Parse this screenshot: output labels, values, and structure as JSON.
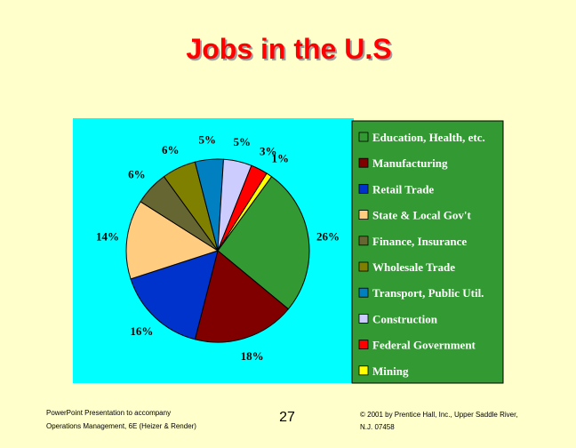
{
  "chart_data": {
    "type": "pie",
    "title": "Jobs in the U.S",
    "categories": [
      "Education, Health, etc.",
      "Manufacturing",
      "Retail Trade",
      "State & Local Gov't",
      "Finance, Insurance",
      "Wholesale Trade",
      "Transport, Public Util.",
      "Construction",
      "Federal Government",
      "Mining"
    ],
    "values": [
      26,
      18,
      16,
      14,
      6,
      6,
      5,
      5,
      3,
      1
    ],
    "value_labels": [
      "26%",
      "18%",
      "16%",
      "14%",
      "6%",
      "6%",
      "5%",
      "5%",
      "3%",
      "1%"
    ],
    "colors": [
      "#339933",
      "#800000",
      "#0033cc",
      "#ffcc80",
      "#666633",
      "#808000",
      "#0080c0",
      "#ccccff",
      "#ff0000",
      "#ffff00"
    ],
    "legend": "right"
  },
  "footer": {
    "left": [
      "PowerPoint Presentation to accompany",
      "Operations Management, 6E (Heizer & Render)"
    ],
    "page": "27",
    "right": [
      "© 2001 by Prentice Hall, Inc., Upper Saddle River,",
      "N.J. 07458"
    ]
  }
}
